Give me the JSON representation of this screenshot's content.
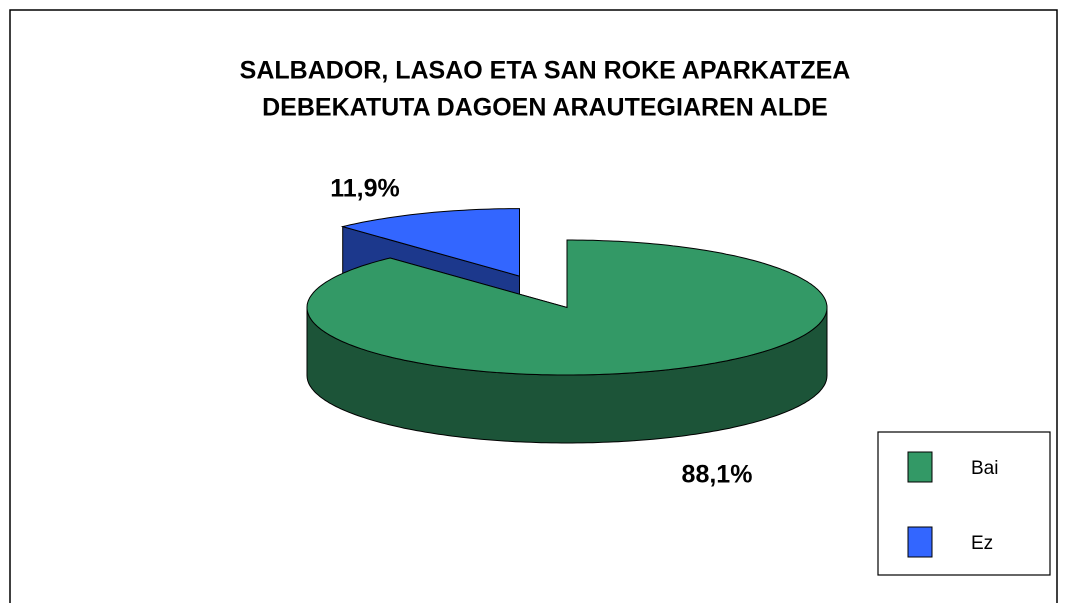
{
  "chart_data": {
    "type": "pie",
    "title": [
      "SALBADOR, LASAO ETA SAN ROKE APARKATZEA",
      "DEBEKATUTA DAGOEN ARAUTEGIAREN ALDE"
    ],
    "categories": [
      "Bai",
      "Ez"
    ],
    "values": [
      88.1,
      11.9
    ],
    "value_labels": [
      "88,1%",
      "11,9%"
    ],
    "colors": [
      "#339966",
      "#3366ff"
    ],
    "legend": "bottom-right"
  }
}
